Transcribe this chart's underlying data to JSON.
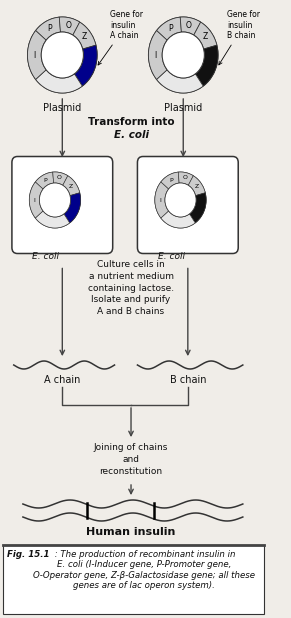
{
  "background_color": "#f0ede8",
  "plasmid_edge_color": "#333333",
  "gene_a_color": "#00008B",
  "gene_b_color": "#111111",
  "segment_color": "#cccccc",
  "arrow_color": "#444444",
  "wave_color": "#333333",
  "text_color": "#111111",
  "fig_caption_bold": "Fig. 15.1",
  "fig_caption_rest": " : The production of recombinant insulin in\nE. coli (I-Inducer gene, P-Promoter gene,\nO-Operator gene, Z-β-Galactosidase gene; all these\ngenes are of lac operon system).",
  "transform_text": "Transform into",
  "ecoli_italic": "E. coli",
  "culture_text": "Culture cells in\na nutrient medium\ncontaining lactose.\nIsolate and purify\nA and B chains",
  "a_chain_label": "A chain",
  "b_chain_label": "B chain",
  "joining_text": "Joining of chains\nand\nreconstitution",
  "human_insulin_label": "Human insulin",
  "plasmid_label": "Plasmid",
  "gene_a_label": "Gene for\ninsulin\nA chain",
  "gene_b_label": "Gene for\ninsulin\nB chain"
}
